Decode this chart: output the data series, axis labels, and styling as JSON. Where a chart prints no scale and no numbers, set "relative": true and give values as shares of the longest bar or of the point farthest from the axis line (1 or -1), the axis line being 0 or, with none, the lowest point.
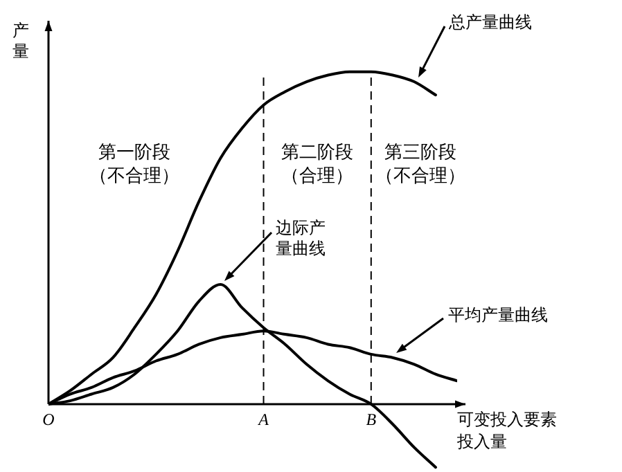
{
  "chart_data": {
    "type": "line",
    "relative": true,
    "xlabel": "可变投入要素投入量",
    "ylabel": "产量",
    "categories": [
      "O",
      null,
      null,
      null,
      null,
      null,
      null,
      null,
      null,
      null,
      "A",
      null,
      null,
      null,
      null,
      "B",
      null,
      null,
      null,
      null
    ],
    "series": [
      {
        "name": "总产量曲线",
        "color": "#000000",
        "values": [
          0,
          0.04,
          0.09,
          0.14,
          0.23,
          0.33,
          0.46,
          0.61,
          0.74,
          0.83,
          0.9,
          0.94,
          0.97,
          0.99,
          1,
          1,
          0.99,
          0.97,
          0.93,
          null
        ]
      },
      {
        "name": "边际产量曲线",
        "color": "#000000",
        "values": [
          0,
          0.01,
          0.03,
          0.05,
          0.09,
          0.15,
          0.22,
          0.31,
          0.36,
          0.29,
          0.23,
          0.18,
          0.12,
          0.07,
          0.03,
          0,
          -0.06,
          -0.13,
          -0.19,
          null
        ]
      },
      {
        "name": "平均产量曲线",
        "color": "#000000",
        "values": [
          0,
          0.03,
          0.05,
          0.08,
          0.1,
          0.13,
          0.15,
          0.18,
          0.2,
          0.21,
          0.22,
          0.21,
          0.2,
          0.18,
          0.17,
          0.15,
          0.14,
          0.12,
          0.09,
          0.07
        ]
      }
    ],
    "ref_lines": [
      {
        "axis": "x",
        "value": "A",
        "line_style": "dashed"
      },
      {
        "axis": "x",
        "value": "B",
        "line_style": "dashed"
      }
    ],
    "annotations": [
      "第一阶段（不合理）",
      "第二阶段（合理）",
      "第三阶段（不合理）"
    ],
    "legend": false,
    "marker": "none",
    "line_style": "solid"
  }
}
